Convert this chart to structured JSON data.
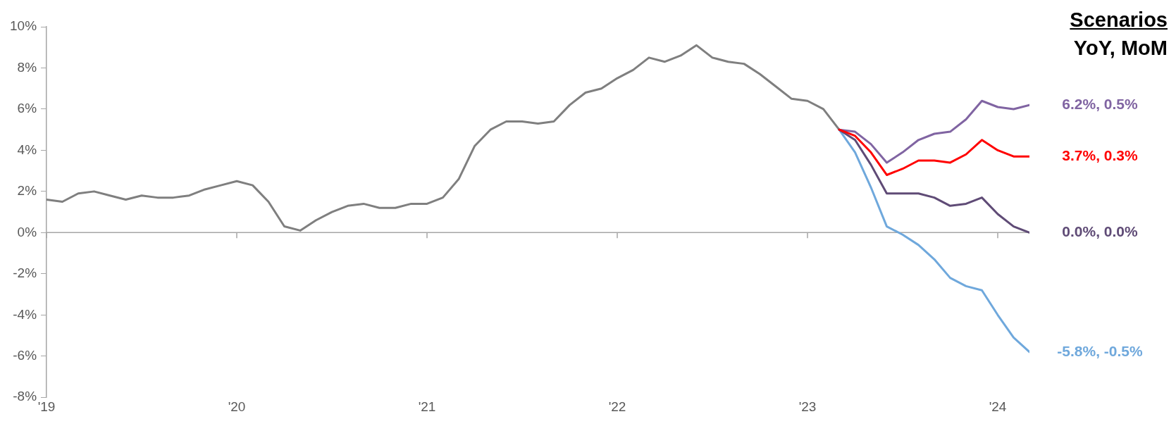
{
  "chart_data": {
    "type": "line",
    "title": "Scenarios",
    "subtitle": "YoY, MoM",
    "xlim": [
      "2019-01",
      "2024-03"
    ],
    "xticks": [
      {
        "value": "2019-01",
        "label": "'19"
      },
      {
        "value": "2020-01",
        "label": "'20"
      },
      {
        "value": "2021-01",
        "label": "'21"
      },
      {
        "value": "2022-01",
        "label": "'22"
      },
      {
        "value": "2023-01",
        "label": "'23"
      },
      {
        "value": "2024-01",
        "label": "'24"
      }
    ],
    "ylim": [
      -8,
      10
    ],
    "yticks": [
      {
        "value": -8,
        "label": "-8%"
      },
      {
        "value": -6,
        "label": "-6%"
      },
      {
        "value": -4,
        "label": "-4%"
      },
      {
        "value": -2,
        "label": "-2%"
      },
      {
        "value": 0,
        "label": "0%"
      },
      {
        "value": 2,
        "label": "2%"
      },
      {
        "value": 4,
        "label": "4%"
      },
      {
        "value": 6,
        "label": "6%"
      },
      {
        "value": 8,
        "label": "8%"
      },
      {
        "value": 10,
        "label": "10%"
      }
    ],
    "grid": false,
    "legend": false,
    "marker": "none",
    "line_style": "solid",
    "ref_lines": [
      {
        "axis": "y",
        "value": 0,
        "color": "#a6a6a6"
      }
    ],
    "series": [
      {
        "color": "#7f7f7f",
        "x": [
          "2019-01",
          "2019-02",
          "2019-03",
          "2019-04",
          "2019-05",
          "2019-06",
          "2019-07",
          "2019-08",
          "2019-09",
          "2019-10",
          "2019-11",
          "2019-12",
          "2020-01",
          "2020-02",
          "2020-03",
          "2020-04",
          "2020-05",
          "2020-06",
          "2020-07",
          "2020-08",
          "2020-09",
          "2020-10",
          "2020-11",
          "2020-12",
          "2021-01",
          "2021-02",
          "2021-03",
          "2021-04",
          "2021-05",
          "2021-06",
          "2021-07",
          "2021-08",
          "2021-09",
          "2021-10",
          "2021-11",
          "2021-12",
          "2022-01",
          "2022-02",
          "2022-03",
          "2022-04",
          "2022-05",
          "2022-06",
          "2022-07",
          "2022-08",
          "2022-09",
          "2022-10",
          "2022-11",
          "2022-12",
          "2023-01",
          "2023-02",
          "2023-03"
        ],
        "values": [
          1.6,
          1.5,
          1.9,
          2.0,
          1.8,
          1.6,
          1.8,
          1.7,
          1.7,
          1.8,
          2.1,
          2.3,
          2.5,
          2.3,
          1.5,
          0.3,
          0.1,
          0.6,
          1.0,
          1.3,
          1.4,
          1.2,
          1.2,
          1.4,
          1.4,
          1.7,
          2.6,
          4.2,
          5.0,
          5.4,
          5.4,
          5.3,
          5.4,
          6.2,
          6.8,
          7.0,
          7.5,
          7.9,
          8.5,
          8.3,
          8.6,
          9.1,
          8.5,
          8.3,
          8.2,
          7.7,
          7.1,
          6.5,
          6.4,
          6.0,
          5.0
        ]
      },
      {
        "name": "6.2%, 0.5%",
        "color": "#8064a2",
        "x": [
          "2023-03",
          "2023-04",
          "2023-05",
          "2023-06",
          "2023-07",
          "2023-08",
          "2023-09",
          "2023-10",
          "2023-11",
          "2023-12",
          "2024-01",
          "2024-02",
          "2024-03"
        ],
        "values": [
          5.0,
          4.9,
          4.3,
          3.4,
          3.9,
          4.5,
          4.8,
          4.9,
          5.5,
          6.4,
          6.1,
          6.0,
          6.2
        ]
      },
      {
        "name": "-5.8%, -0.5%",
        "color": "#6fa8dc",
        "x": [
          "2023-03",
          "2023-04",
          "2023-05",
          "2023-06",
          "2023-07",
          "2023-08",
          "2023-09",
          "2023-10",
          "2023-11",
          "2023-12",
          "2024-01",
          "2024-02",
          "2024-03"
        ],
        "values": [
          5.0,
          3.9,
          2.2,
          0.3,
          -0.1,
          -0.6,
          -1.3,
          -2.2,
          -2.6,
          -2.8,
          -4.0,
          -5.1,
          -5.8
        ]
      },
      {
        "name": "0.0%, 0.0%",
        "color": "#5f4b76",
        "x": [
          "2023-03",
          "2023-04",
          "2023-05",
          "2023-06",
          "2023-07",
          "2023-08",
          "2023-09",
          "2023-10",
          "2023-11",
          "2023-12",
          "2024-01",
          "2024-02",
          "2024-03"
        ],
        "values": [
          5.0,
          4.5,
          3.3,
          1.9,
          1.9,
          1.9,
          1.7,
          1.3,
          1.4,
          1.7,
          0.9,
          0.3,
          0.0
        ]
      },
      {
        "name": "3.7%, 0.3%",
        "color": "#ff0000",
        "x": [
          "2023-03",
          "2023-04",
          "2023-05",
          "2023-06",
          "2023-07",
          "2023-08",
          "2023-09",
          "2023-10",
          "2023-11",
          "2023-12",
          "2024-01",
          "2024-02",
          "2024-03"
        ],
        "values": [
          5.0,
          4.7,
          3.9,
          2.8,
          3.1,
          3.5,
          3.5,
          3.4,
          3.8,
          4.5,
          4.0,
          3.7,
          3.7
        ]
      }
    ]
  }
}
